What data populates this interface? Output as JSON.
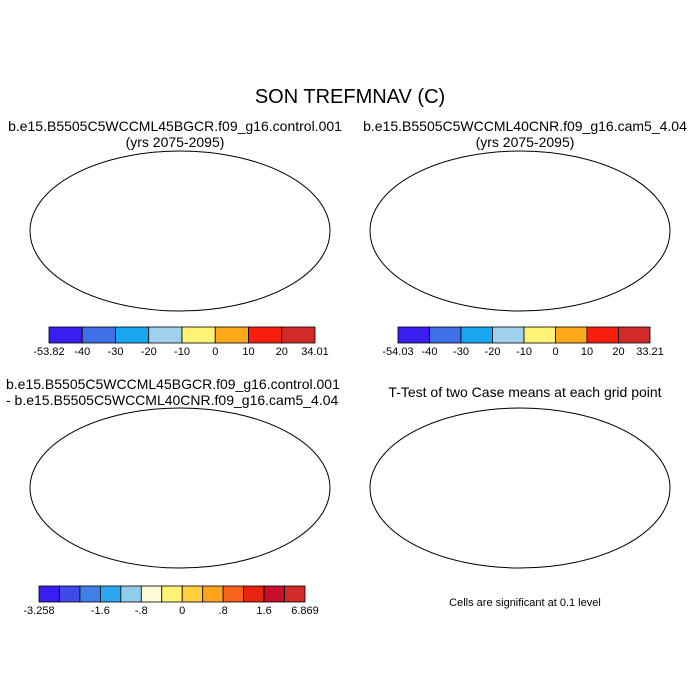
{
  "figure": {
    "title": "SON TREFMNAV (C)"
  },
  "panels": [
    {
      "id": "case1",
      "title_line1": "b.e15.B5505C5WCCML45BGCR.f09_g16.control.001",
      "title_line2": "(yrs 2075-2095)",
      "colorbar": {
        "labels": [
          "-53.82",
          "-40",
          "-30",
          "-20",
          "-10",
          "0",
          "10",
          "20",
          "34.01"
        ],
        "colors": [
          "#3a1ef0",
          "#3f6fe6",
          "#18a6ef",
          "#9fd1ec",
          "#fff275",
          "#ffaa1b",
          "#f81e0e",
          "#d12a28"
        ]
      }
    },
    {
      "id": "case2",
      "title_line1": "b.e15.B5505C5WCCML40CNR.f09_g16.cam5_4.04",
      "title_line2": "(yrs 2075-2095)",
      "colorbar": {
        "labels": [
          "-54.03",
          "-40",
          "-30",
          "-20",
          "-10",
          "0",
          "10",
          "20",
          "33.21"
        ],
        "colors": [
          "#3a1ef0",
          "#3f6fe6",
          "#18a6ef",
          "#9fd1ec",
          "#fff275",
          "#ffaa1b",
          "#f81e0e",
          "#d12a28"
        ]
      }
    },
    {
      "id": "diff",
      "title_line1": "b.e15.B5505C5WCCML45BGCR.f09_g16.control.001",
      "title_line2": "- b.e15.B5505C5WCCML40CNR.f09_g16.cam5_4.04",
      "colorbar": {
        "labels": [
          "-3.258",
          "-1.6",
          "-.8",
          "0",
          ".8",
          "1.6",
          "6.869"
        ],
        "colors": [
          "#3a1ef0",
          "#3f4ae8",
          "#3f7fe6",
          "#2ea6ef",
          "#8fcdea",
          "#fdfbd7",
          "#fff275",
          "#ffd040",
          "#ffa31b",
          "#f8621a",
          "#e62412",
          "#c8102a",
          "#d32a2a"
        ]
      }
    },
    {
      "id": "ttest",
      "title_line1": "T-Test of two Case means at each grid point",
      "note": "Cells are significant at 0.1 level"
    }
  ]
}
